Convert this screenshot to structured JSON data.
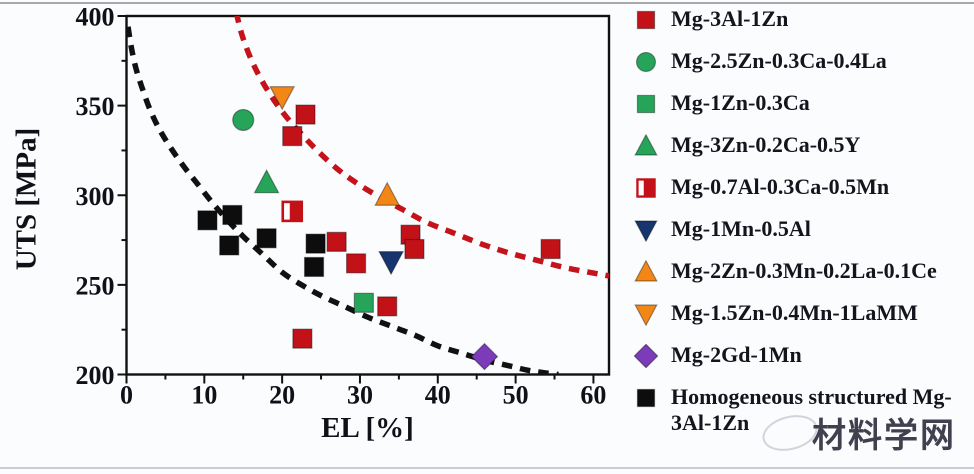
{
  "figure": {
    "watermark_text": "材料学网"
  },
  "chart_data": {
    "type": "scatter",
    "title": "",
    "xlabel": "EL [%]",
    "ylabel": "UTS [MPa]",
    "xlim": [
      0,
      62
    ],
    "ylim": [
      200,
      400
    ],
    "xticks": [
      0,
      10,
      20,
      30,
      40,
      50,
      60
    ],
    "yticks": [
      200,
      250,
      300,
      350,
      400
    ],
    "x_minor_step": 5,
    "y_minor_step": 25,
    "grid": false,
    "legend_position": "right",
    "colors": {
      "red": "#c31118",
      "green": "#26a45a",
      "navy": "#16356e",
      "orange": "#f28617",
      "purple": "#7c3cb9",
      "black": "#0d0d0d"
    },
    "series": [
      {
        "name": "Mg-3Al-1Zn",
        "marker": "square",
        "color": "#c31118",
        "points": [
          [
            23,
            345
          ],
          [
            21.3,
            333
          ],
          [
            22.6,
            220
          ],
          [
            27,
            274
          ],
          [
            29.5,
            262
          ],
          [
            33.5,
            238
          ],
          [
            36.5,
            278
          ],
          [
            37,
            270
          ],
          [
            54.5,
            270
          ]
        ]
      },
      {
        "name": "Mg-2.5Zn-0.3Ca-0.4La",
        "marker": "circle",
        "color": "#26a45a",
        "points": [
          [
            15,
            342
          ]
        ]
      },
      {
        "name": "Mg-1Zn-0.3Ca",
        "marker": "square",
        "color": "#26a45a",
        "points": [
          [
            30.5,
            240
          ]
        ]
      },
      {
        "name": "Mg-3Zn-0.2Ca-0.5Y",
        "marker": "triangle-up",
        "color": "#26a45a",
        "points": [
          [
            18,
            307
          ]
        ]
      },
      {
        "name": "Mg-0.7Al-0.3Ca-0.5Mn",
        "marker": "square-half",
        "color": "#c31118",
        "points": [
          [
            21.3,
            291
          ]
        ]
      },
      {
        "name": "Mg-1Mn-0.5Al",
        "marker": "triangle-down",
        "color": "#16356e",
        "points": [
          [
            34,
            263
          ]
        ]
      },
      {
        "name": "Mg-2Zn-0.3Mn-0.2La-0.1Ce",
        "marker": "triangle-up",
        "color": "#f28617",
        "points": [
          [
            33.5,
            300
          ]
        ]
      },
      {
        "name": "Mg-1.5Zn-0.4Mn-1LaMM",
        "marker": "triangle-down",
        "color": "#f28617",
        "points": [
          [
            20,
            355
          ]
        ]
      },
      {
        "name": "Mg-2Gd-1Mn",
        "marker": "diamond",
        "color": "#7c3cb9",
        "points": [
          [
            46,
            210
          ]
        ]
      },
      {
        "name": "Homogeneous structured Mg-3Al-1Zn",
        "marker": "square",
        "color": "#0d0d0d",
        "points": [
          [
            10.4,
            286
          ],
          [
            13.6,
            289
          ],
          [
            13.2,
            272
          ],
          [
            18,
            276
          ],
          [
            24.3,
            273
          ],
          [
            24.1,
            260
          ]
        ]
      }
    ],
    "curves": [
      {
        "name": "black-trend",
        "color": "#111111",
        "points": [
          [
            0.2,
            394
          ],
          [
            0.6,
            383
          ],
          [
            1.2,
            371
          ],
          [
            2,
            360
          ],
          [
            3,
            348
          ],
          [
            4.2,
            337
          ],
          [
            5.6,
            327
          ],
          [
            7.2,
            317
          ],
          [
            9,
            307
          ],
          [
            11,
            296
          ],
          [
            13,
            286
          ],
          [
            15,
            277
          ],
          [
            17.5,
            267
          ],
          [
            20,
            257
          ],
          [
            22.5,
            250
          ],
          [
            25,
            244
          ],
          [
            28,
            238
          ],
          [
            31,
            232
          ],
          [
            34,
            227
          ],
          [
            37,
            222
          ],
          [
            40,
            216
          ],
          [
            43,
            212
          ],
          [
            46,
            208
          ],
          [
            49,
            205
          ],
          [
            52,
            202
          ],
          [
            55.5,
            200
          ]
        ]
      },
      {
        "name": "red-trend",
        "color": "#c4131a",
        "points": [
          [
            14.1,
            402
          ],
          [
            14.8,
            390
          ],
          [
            15.8,
            378
          ],
          [
            17,
            367
          ],
          [
            18.5,
            356
          ],
          [
            20.3,
            345
          ],
          [
            22.3,
            335
          ],
          [
            24.5,
            325
          ],
          [
            27,
            315
          ],
          [
            29.5,
            307
          ],
          [
            32.5,
            299
          ],
          [
            35.5,
            292
          ],
          [
            38.5,
            285
          ],
          [
            42,
            279
          ],
          [
            45.5,
            273
          ],
          [
            49,
            268
          ],
          [
            52.5,
            264
          ],
          [
            56,
            260
          ],
          [
            59.5,
            257
          ],
          [
            62,
            255
          ]
        ]
      }
    ]
  }
}
